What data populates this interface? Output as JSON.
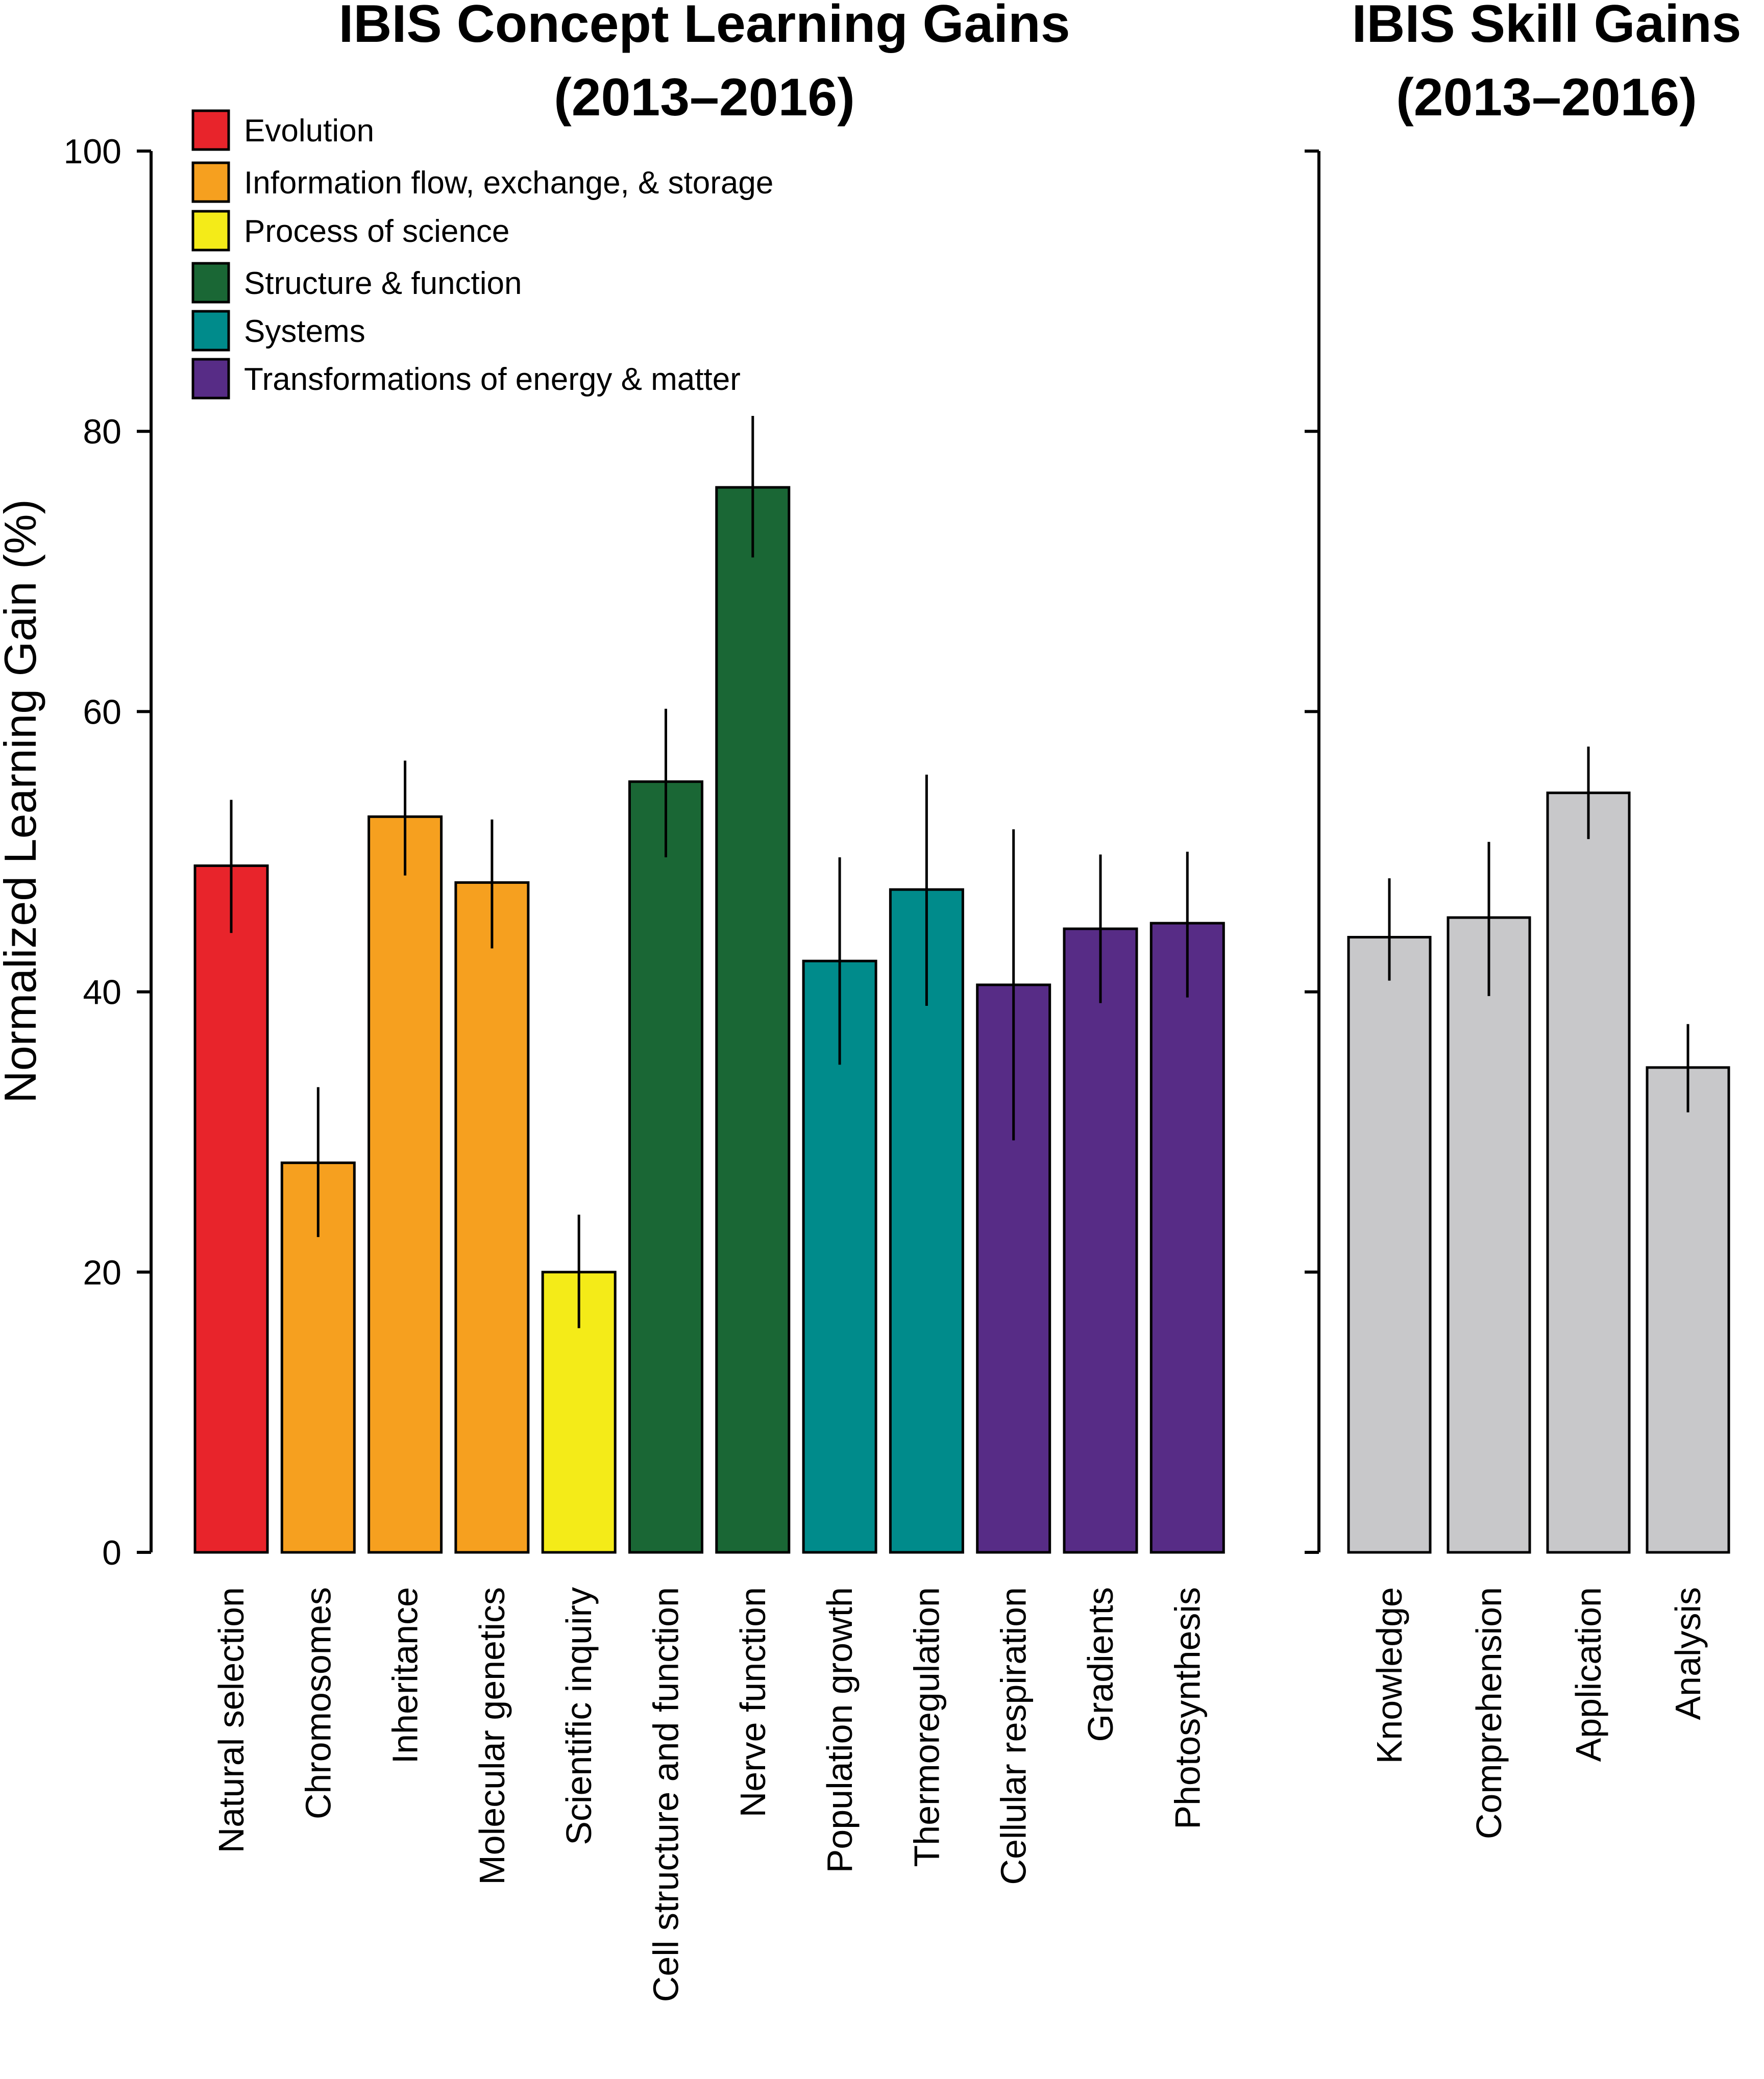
{
  "chart_data": [
    {
      "type": "bar",
      "title": [
        "IBIS Concept Learning Gains",
        "(2013–2016)"
      ],
      "ylabel": "Normalized Learning Gain (%)",
      "ylim": [
        0,
        100
      ],
      "yticks": [
        0,
        20,
        40,
        60,
        80,
        100
      ],
      "legend": {
        "position": "top-left",
        "entries": [
          {
            "label": "Evolution",
            "color": "#e8242b"
          },
          {
            "label": "Information flow, exchange, & storage",
            "color": "#f6a01f"
          },
          {
            "label": "Process of science",
            "color": "#f4eb18"
          },
          {
            "label": "Structure & function",
            "color": "#1a6735"
          },
          {
            "label": "Systems",
            "color": "#008b8b"
          },
          {
            "label": "Transformations of energy & matter",
            "color": "#572c86"
          }
        ]
      },
      "categories": [
        "Natural selection",
        "Chromosomes",
        "Inheritance",
        "Molecular genetics",
        "Scientific inquiry",
        "Cell structure and function",
        "Nerve function",
        "Population growth",
        "Thermoregulation",
        "Cellular respiration",
        "Gradients",
        "Photosynthesis"
      ],
      "values": [
        49,
        27.8,
        52.5,
        47.8,
        20,
        55,
        76,
        42.2,
        47.3,
        40.5,
        44.5,
        44.9
      ],
      "error_low": [
        44.2,
        22.5,
        48.3,
        43.1,
        16,
        49.6,
        71,
        34.8,
        39,
        29.4,
        39.2,
        39.6
      ],
      "error_high": [
        53.7,
        33.2,
        56.5,
        52.3,
        24.1,
        60.2,
        81.1,
        49.6,
        55.5,
        51.6,
        49.8,
        50
      ],
      "bar_groups": [
        "Evolution",
        "Information flow, exchange, & storage",
        "Information flow, exchange, & storage",
        "Information flow, exchange, & storage",
        "Process of science",
        "Structure & function",
        "Structure & function",
        "Systems",
        "Systems",
        "Transformations of energy & matter",
        "Transformations of energy & matter",
        "Transformations of energy & matter"
      ]
    },
    {
      "type": "bar",
      "title": [
        "IBIS Skill Gains",
        "(2013–2016)"
      ],
      "ylim": [
        0,
        100
      ],
      "categories": [
        "Knowledge",
        "Comprehension",
        "Application",
        "Analysis"
      ],
      "values": [
        43.9,
        45.3,
        54.2,
        34.6
      ],
      "error_low": [
        40.8,
        39.7,
        50.9,
        31.4
      ],
      "error_high": [
        48.1,
        50.7,
        57.5,
        37.7
      ],
      "bar_color": "#c8c8ca"
    }
  ]
}
